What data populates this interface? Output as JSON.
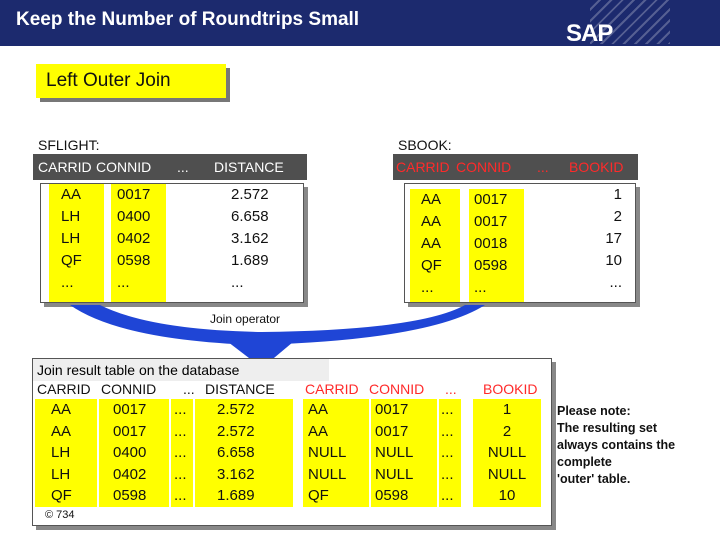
{
  "header": {
    "title": "Keep the Number of Roundtrips Small",
    "logo": "SAP",
    "background": "#1c2a6e"
  },
  "badge": {
    "label": "Left Outer Join",
    "color": "#ffff00"
  },
  "sflight": {
    "name": "SFLIGHT:",
    "columns": [
      "CARRID",
      "CONNID",
      "...",
      "DISTANCE"
    ],
    "carrid": "AA\nLH\nLH\nQF\n...",
    "connid": "0017\n0400\n0402\n0598\n...",
    "distance": "2.572\n6.658\n3.162\n1.689\n..."
  },
  "sbook": {
    "name": "SBOOK:",
    "columns": [
      "CARRID",
      "CONNID",
      "...",
      "BOOKID"
    ],
    "carrid": "AA\nAA\nAA\nQF\n...",
    "connid": "0017\n0017\n0018\n0598\n...",
    "bookid": "1\n2\n17\n10\n..."
  },
  "join_operator": "Join operator",
  "result": {
    "title": "Join result  table on the database",
    "columns": [
      "CARRID",
      "CONNID",
      "...",
      "DISTANCE",
      "CARRID",
      "CONNID",
      "...",
      "BOOKID"
    ],
    "c1": "AA\nAA\nLH\nLH\nQF",
    "c2": "0017\n0017\n0400\n0402\n0598",
    "c3": "...\n...\n...\n...\n...",
    "c4": "2.572\n2.572\n6.658\n3.162\n1.689",
    "c5": "AA\nAA\nNULL\nNULL\nQF",
    "c6": "0017\n0017\nNULL\nNULL\n0598",
    "c7": "...\n...\n...\n...\n...",
    "c8": "1\n2\nNULL\nNULL\n10"
  },
  "note": "Please note:\nThe resulting set\nalways contains the\ncomplete\n'outer' table.",
  "copyright": "© 734",
  "colors": {
    "highlight": "#ffff00",
    "header_bar": "#4f4f4f",
    "accent_blue": "#1f45d6"
  }
}
